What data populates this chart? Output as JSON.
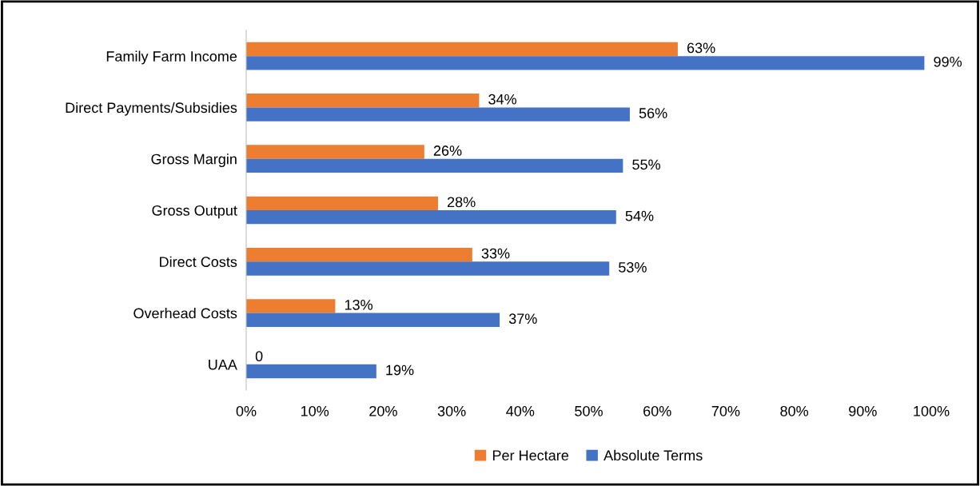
{
  "chart_data": {
    "type": "bar",
    "orientation": "horizontal",
    "categories": [
      "Family Farm Income",
      "Direct Payments/Subsidies",
      "Gross Margin",
      "Gross Output",
      "Direct Costs",
      "Overhead Costs",
      "UAA"
    ],
    "series": [
      {
        "name": "Per Hectare",
        "color": "#ed7d31",
        "values": [
          63,
          34,
          26,
          28,
          33,
          13,
          0
        ],
        "value_labels": [
          "63%",
          "34%",
          "26%",
          "28%",
          "33%",
          "13%",
          "0"
        ]
      },
      {
        "name": "Absolute Terms",
        "color": "#4472c4",
        "values": [
          99,
          56,
          55,
          54,
          53,
          37,
          19
        ],
        "value_labels": [
          "99%",
          "56%",
          "55%",
          "54%",
          "53%",
          "37%",
          "19%"
        ]
      }
    ],
    "xlim": [
      0,
      100
    ],
    "xticks": [
      {
        "value": 0,
        "label": "0%"
      },
      {
        "value": 10,
        "label": "10%"
      },
      {
        "value": 20,
        "label": "20%"
      },
      {
        "value": 30,
        "label": "30%"
      },
      {
        "value": 40,
        "label": "40%"
      },
      {
        "value": 50,
        "label": "50%"
      },
      {
        "value": 60,
        "label": "60%"
      },
      {
        "value": 70,
        "label": "70%"
      },
      {
        "value": 80,
        "label": "80%"
      },
      {
        "value": 90,
        "label": "90%"
      },
      {
        "value": 100,
        "label": "100%"
      }
    ],
    "grid": false,
    "legend": "bottom"
  }
}
